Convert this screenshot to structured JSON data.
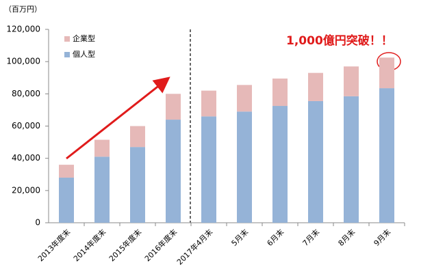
{
  "chart_data": {
    "type": "bar",
    "stacked": true,
    "unit_label": "（百万円）",
    "annotation": "1,000億円突破！！",
    "categories": [
      "2013年度末",
      "2014年度末",
      "2015年度末",
      "2016年度末",
      "2017年4月末",
      "5月末",
      "6月末",
      "7月末",
      "8月末",
      "9月末"
    ],
    "series": [
      {
        "name": "個人型",
        "color": "#95b3d7",
        "values": [
          28000,
          41000,
          47000,
          64000,
          66000,
          69000,
          72500,
          75500,
          78500,
          83500
        ]
      },
      {
        "name": "企業型",
        "color": "#e6b9b8",
        "values": [
          8000,
          10500,
          13000,
          16000,
          16000,
          16500,
          17000,
          17500,
          18500,
          19000
        ]
      }
    ],
    "ylim": [
      0,
      120000
    ],
    "yticks": [
      0,
      {
        "value": 20000,
        "label": "20,000"
      },
      {
        "value": 40000,
        "label": "40,000"
      },
      {
        "value": 60000,
        "label": "60,000"
      },
      {
        "value": 80000,
        "label": "80,000"
      },
      {
        "value": 100000,
        "label": "100,000"
      },
      {
        "value": 120000,
        "label": "120,000"
      }
    ],
    "grid": false
  }
}
